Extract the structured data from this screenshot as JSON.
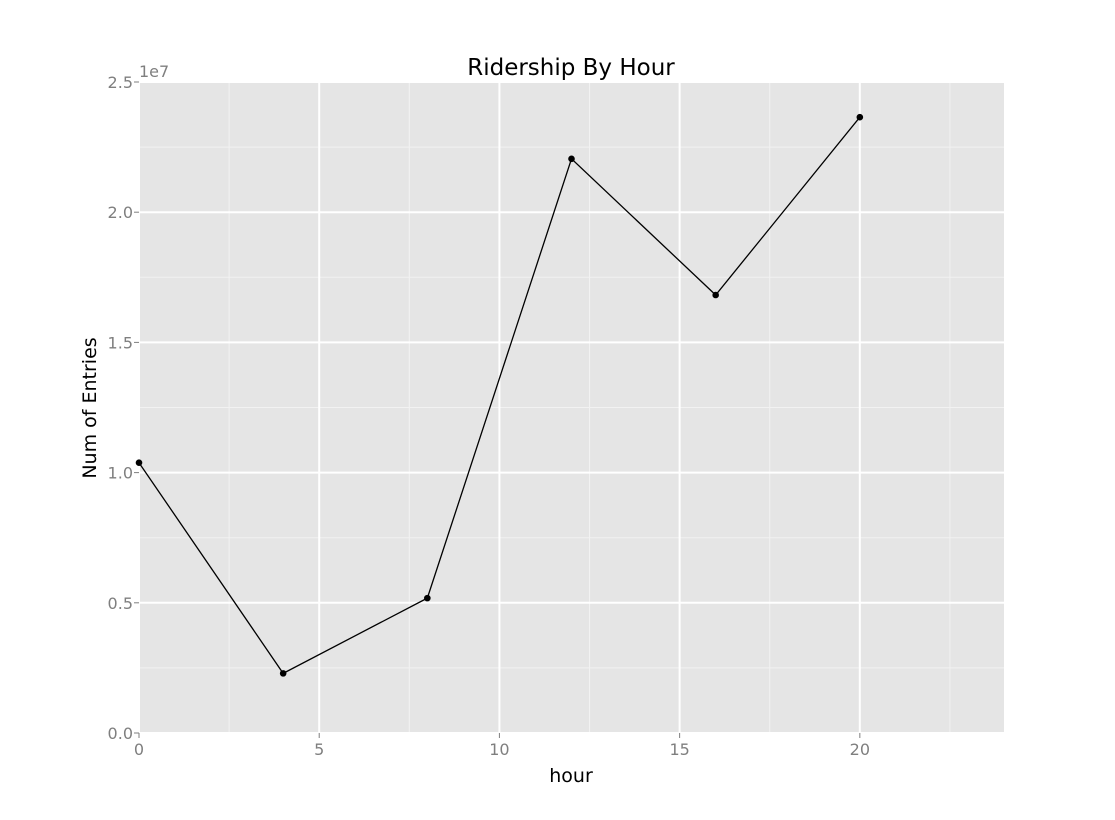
{
  "chart_data": {
    "type": "line",
    "title": "Ridership By Hour",
    "xlabel": "hour",
    "ylabel": "Num of Entries",
    "y_offset_label": "1e7",
    "xlim": [
      0,
      24
    ],
    "ylim": [
      0,
      25000000
    ],
    "x_ticks": [
      0,
      5,
      10,
      15,
      20
    ],
    "x_tick_labels": [
      "0",
      "5",
      "10",
      "15",
      "20"
    ],
    "y_ticks": [
      0,
      5000000,
      10000000,
      15000000,
      20000000,
      25000000
    ],
    "y_tick_labels": [
      "0.0",
      "0.5",
      "1.0",
      "1.5",
      "2.0",
      "2.5"
    ],
    "grid": true,
    "markers": true,
    "colors": {
      "panel": "#e5e5e5",
      "grid_major": "#ffffff",
      "line": "#000000",
      "tick_text": "#7f7f7f"
    },
    "series": [
      {
        "x": [
          0,
          4,
          8,
          12,
          16,
          20
        ],
        "values": [
          10380000,
          2290000,
          5180000,
          22050000,
          16820000,
          23650000
        ]
      }
    ]
  }
}
